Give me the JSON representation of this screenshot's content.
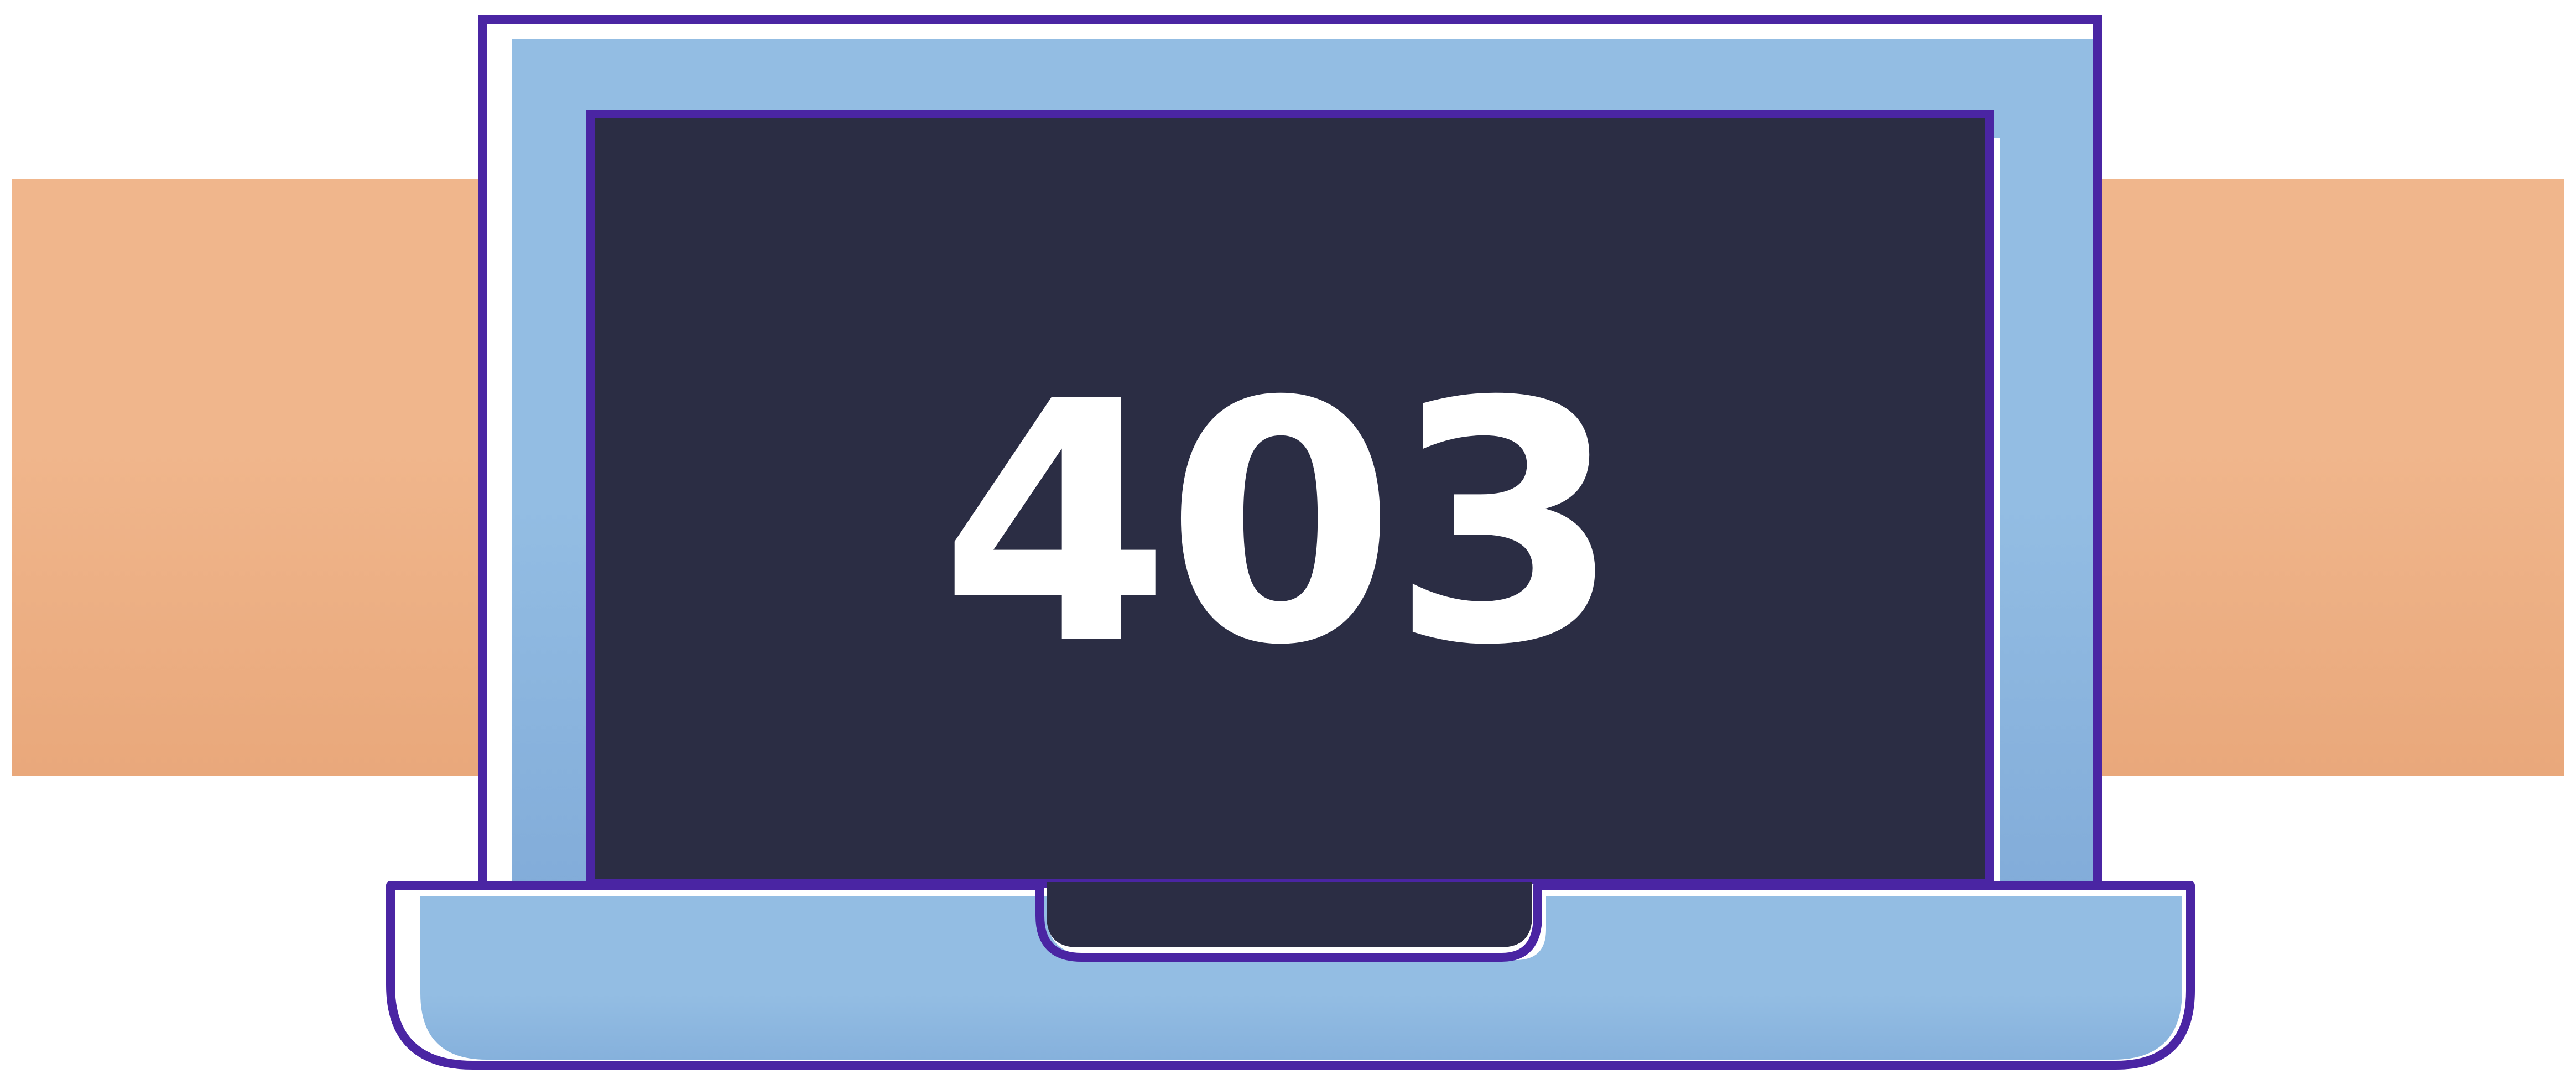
{
  "error": {
    "code": "403"
  },
  "colors": {
    "background": "#ffffff",
    "band": "#f0b68c",
    "band_shadow": "#e7a578",
    "laptop_body": "#93bde3",
    "laptop_shadow": "#7fa9d6",
    "outline": "#4a25a3",
    "screen": "#2b2d44",
    "code_text": "#ffffff"
  },
  "icons": [
    "laptop-illustration"
  ]
}
